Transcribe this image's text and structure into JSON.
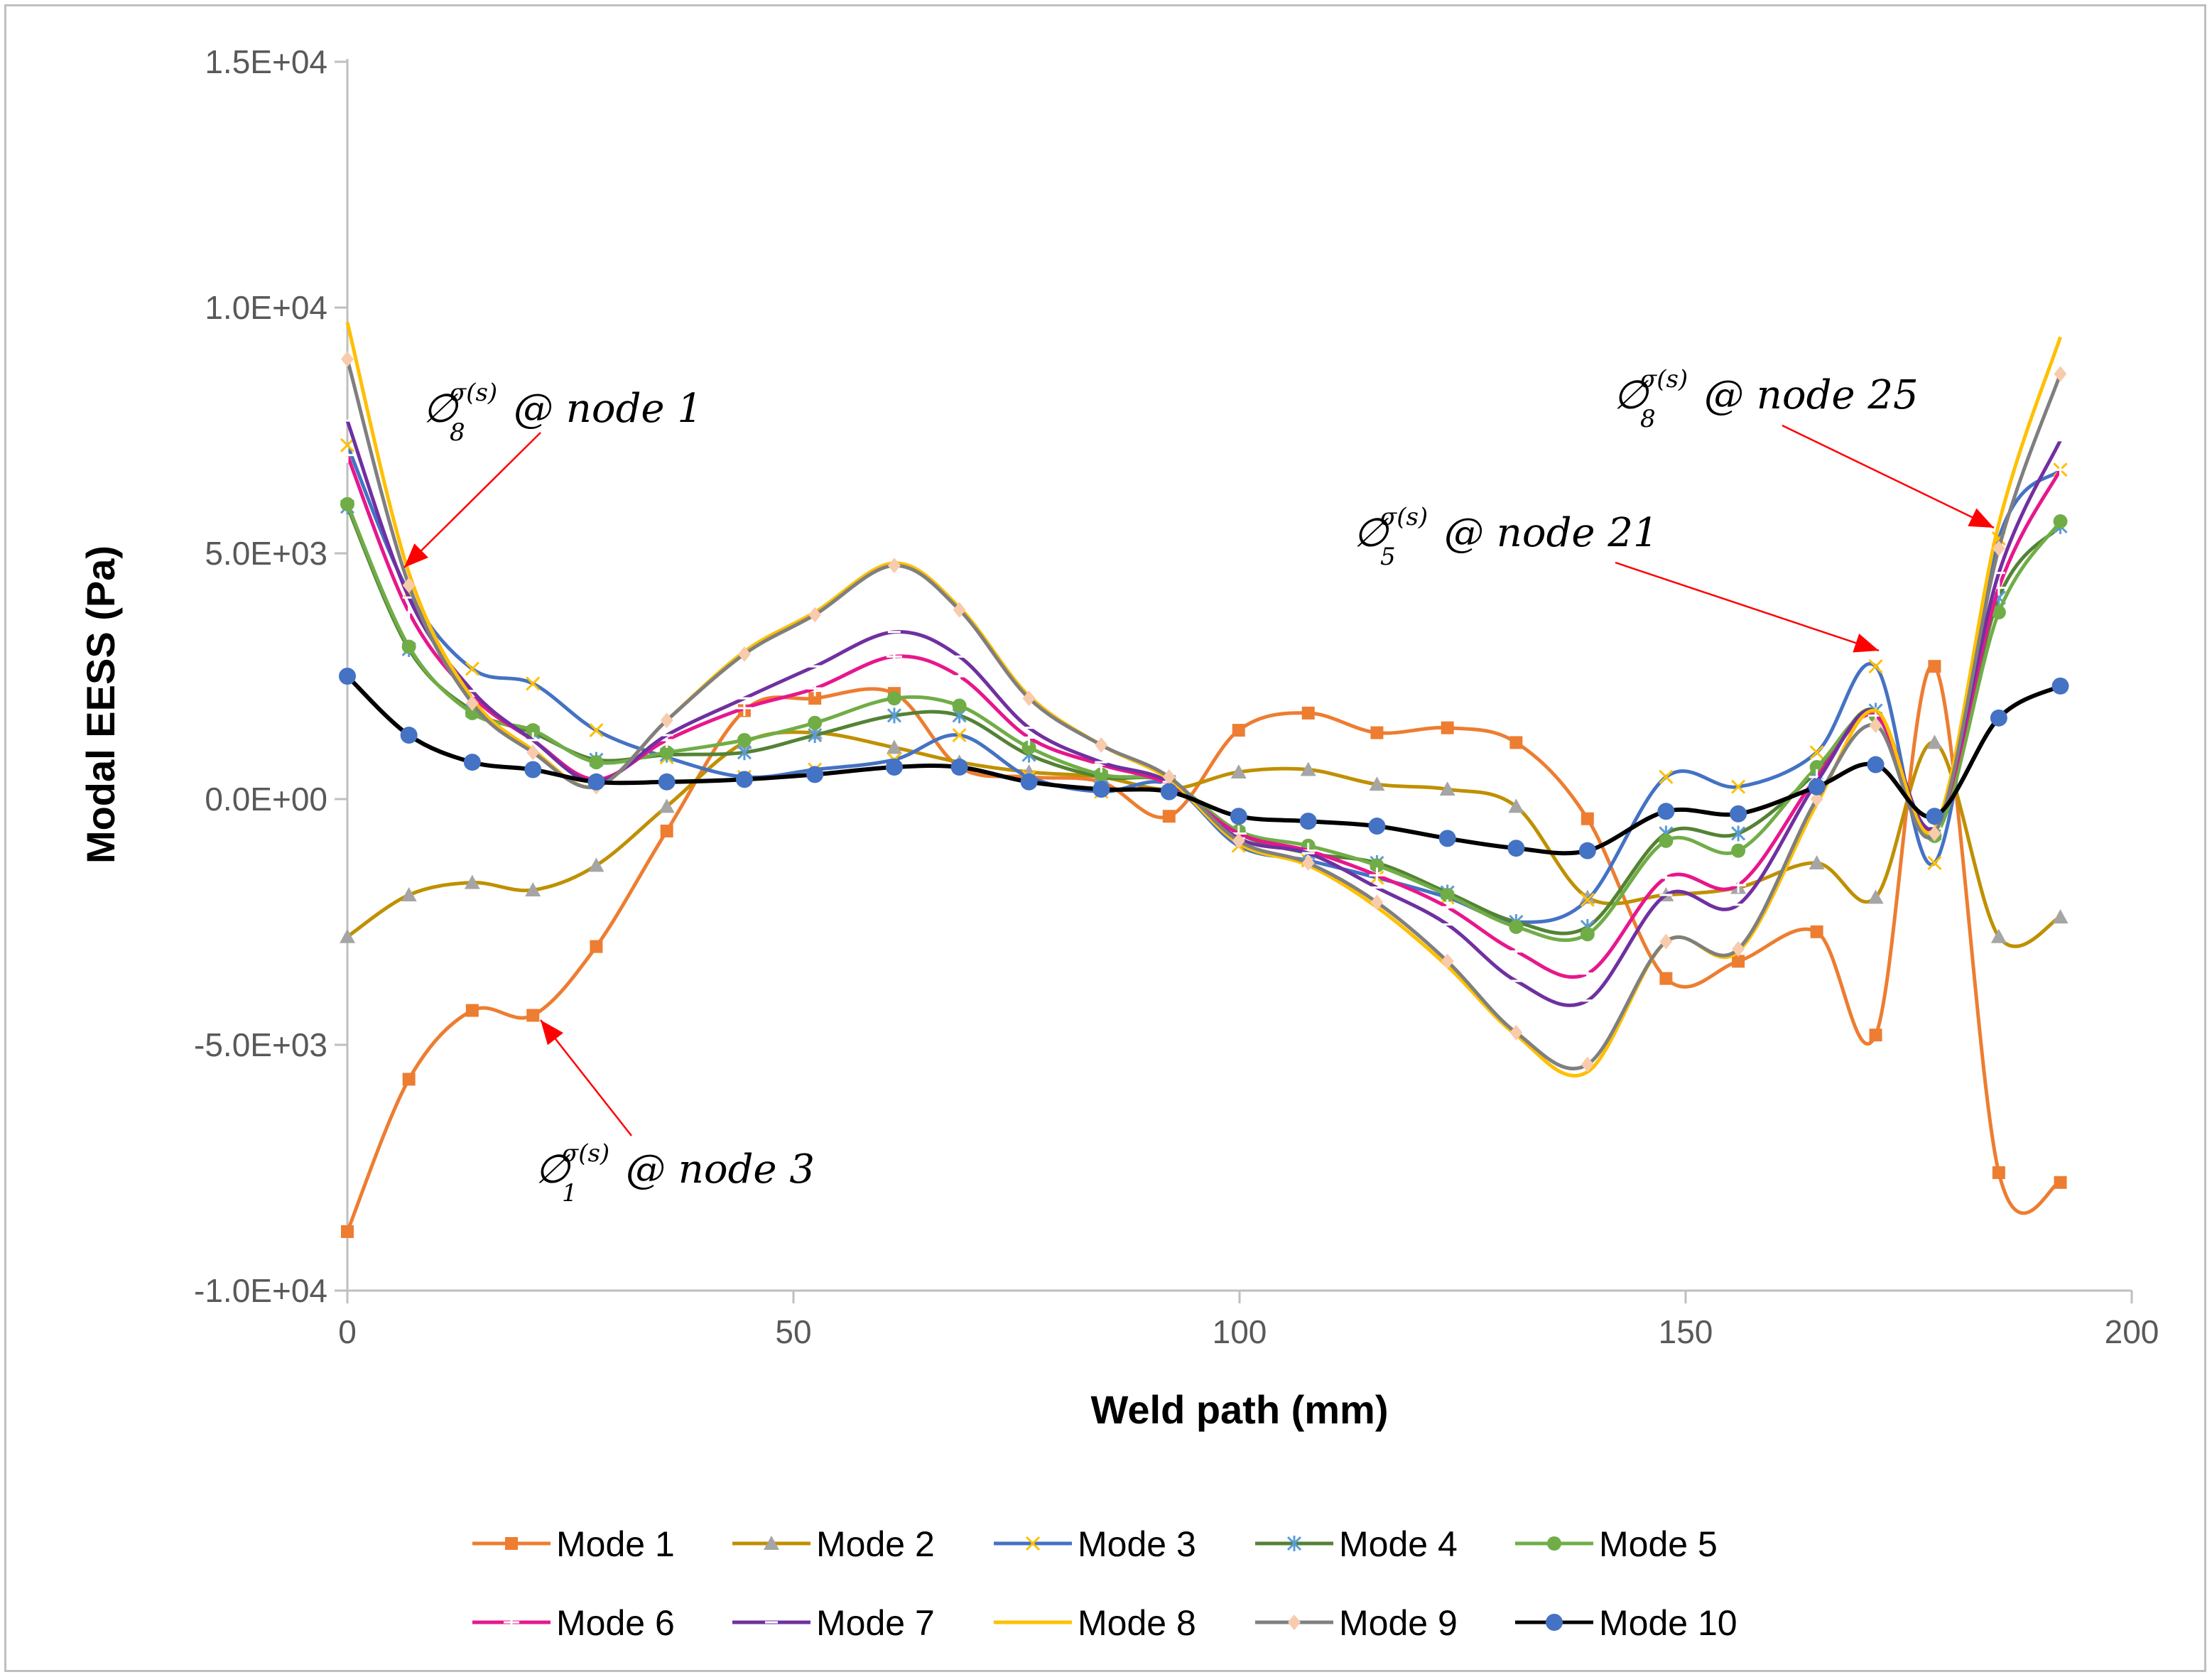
{
  "chart_data": {
    "type": "line",
    "title": "",
    "xlabel": "Weld path (mm)",
    "ylabel": "Modal EESS (Pa)",
    "xlim": [
      0,
      200
    ],
    "ylim": [
      -10000,
      15000
    ],
    "x_ticks": [
      0,
      50,
      100,
      150,
      200
    ],
    "y_ticks": [
      -10000,
      -5000,
      0,
      5000,
      10000,
      15000
    ],
    "x_tick_labels": [
      "0",
      "50",
      "100",
      "150",
      "200"
    ],
    "y_tick_labels": [
      "-1.0E+04",
      "-5.0E+03",
      "0.0E+00",
      "5.0E+03",
      "1.0E+04",
      "1.5E+04"
    ],
    "legend_position": "bottom",
    "x": [
      0,
      6.9,
      14,
      20.8,
      27.9,
      35.8,
      44.5,
      52.4,
      61.3,
      68.6,
      76.4,
      84.5,
      92.1,
      99.9,
      107.7,
      115.4,
      123.3,
      131,
      139,
      147.8,
      155.9,
      164.7,
      171.3,
      177.9,
      185.1,
      192
    ],
    "series": [
      {
        "name": "Mode 1",
        "color": "#ED7D31",
        "marker": "square",
        "values": [
          -8800,
          -5700,
          -4300,
          -4400,
          -3000,
          -650,
          1800,
          2050,
          2150,
          650,
          450,
          350,
          -350,
          1400,
          1750,
          1350,
          1450,
          1150,
          -400,
          -3650,
          -3300,
          -2700,
          -4800,
          2700,
          -7600,
          -7800
        ]
      },
      {
        "name": "Mode 2",
        "color": "#BF9000",
        "marker": "triangle",
        "values": [
          -2800,
          -1950,
          -1700,
          -1850,
          -1350,
          -150,
          1150,
          1350,
          1050,
          750,
          550,
          450,
          200,
          550,
          600,
          300,
          200,
          -150,
          -2000,
          -1950,
          -1800,
          -1300,
          -2000,
          1150,
          -2800,
          -2400
        ]
      },
      {
        "name": "Mode 3",
        "color": "#4472C4",
        "marker": "x",
        "values": [
          7200,
          4200,
          2650,
          2350,
          1400,
          850,
          450,
          600,
          800,
          1300,
          450,
          150,
          300,
          -950,
          -1250,
          -1600,
          -2000,
          -2500,
          -2050,
          450,
          250,
          950,
          2700,
          -1300,
          5300,
          6700
        ]
      },
      {
        "name": "Mode 4",
        "color": "#548235",
        "marker": "star",
        "values": [
          5950,
          3050,
          1800,
          1350,
          800,
          900,
          950,
          1300,
          1700,
          1700,
          900,
          450,
          350,
          -700,
          -1100,
          -1300,
          -1900,
          -2500,
          -2600,
          -700,
          -700,
          550,
          1800,
          -700,
          4100,
          5550
        ]
      },
      {
        "name": "Mode 5",
        "color": "#70AD47",
        "marker": "circle",
        "values": [
          6000,
          3100,
          1750,
          1400,
          750,
          950,
          1200,
          1550,
          2050,
          1900,
          1050,
          500,
          350,
          -650,
          -950,
          -1350,
          -1950,
          -2600,
          -2750,
          -850,
          -1050,
          650,
          1700,
          -750,
          3800,
          5650
        ]
      },
      {
        "name": "Mode 6",
        "color": "#E7178C",
        "marker": "plus",
        "values": [
          7000,
          3800,
          2100,
          1200,
          400,
          1200,
          1850,
          2250,
          2900,
          2500,
          1250,
          700,
          300,
          -700,
          -1050,
          -1550,
          -2200,
          -3100,
          -3550,
          -1600,
          -1750,
          450,
          1700,
          -600,
          4300,
          6700
        ]
      },
      {
        "name": "Mode 7",
        "color": "#7030A0",
        "marker": "dash",
        "values": [
          7700,
          4100,
          2200,
          1200,
          350,
          1300,
          2050,
          2700,
          3400,
          2900,
          1450,
          750,
          350,
          -800,
          -1100,
          -1800,
          -2550,
          -3700,
          -4100,
          -1950,
          -2150,
          350,
          1800,
          -550,
          4600,
          7300
        ]
      },
      {
        "name": "Mode 8",
        "color": "#FFC000",
        "marker": "none",
        "values": [
          9700,
          4600,
          2050,
          1000,
          250,
          1600,
          3000,
          3800,
          4800,
          3900,
          2100,
          1100,
          400,
          -900,
          -1350,
          -2200,
          -3400,
          -4800,
          -5550,
          -2900,
          -3100,
          -100,
          1800,
          -600,
          5600,
          9400
        ]
      },
      {
        "name": "Mode 9",
        "color": "#7F7F7F",
        "marker": "diamond",
        "values": [
          8950,
          4350,
          1950,
          950,
          250,
          1600,
          2950,
          3750,
          4750,
          3850,
          2050,
          1100,
          450,
          -850,
          -1300,
          -2100,
          -3300,
          -4750,
          -5400,
          -2900,
          -3050,
          0,
          1500,
          -700,
          5100,
          8650
        ]
      },
      {
        "name": "Mode 10",
        "color": "#000000",
        "marker": "circle",
        "values": [
          2500,
          1300,
          750,
          600,
          350,
          350,
          400,
          500,
          650,
          650,
          350,
          200,
          150,
          -350,
          -450,
          -550,
          -800,
          -1000,
          -1050,
          -250,
          -300,
          250,
          700,
          -350,
          1650,
          2300
        ]
      }
    ],
    "annotations": [
      {
        "symbol": "∅",
        "sub": "8",
        "sup": "σ(s)",
        "label": "@ node 1"
      },
      {
        "symbol": "∅",
        "sub": "8",
        "sup": "σ(s)",
        "label": "@ node 25"
      },
      {
        "symbol": "∅",
        "sub": "5",
        "sup": "σ(s)",
        "label": "@ node 21"
      },
      {
        "symbol": "∅",
        "sub": "1",
        "sup": "σ(s)",
        "label": "@ node 3"
      }
    ],
    "arrow_color": "#FF0000"
  }
}
